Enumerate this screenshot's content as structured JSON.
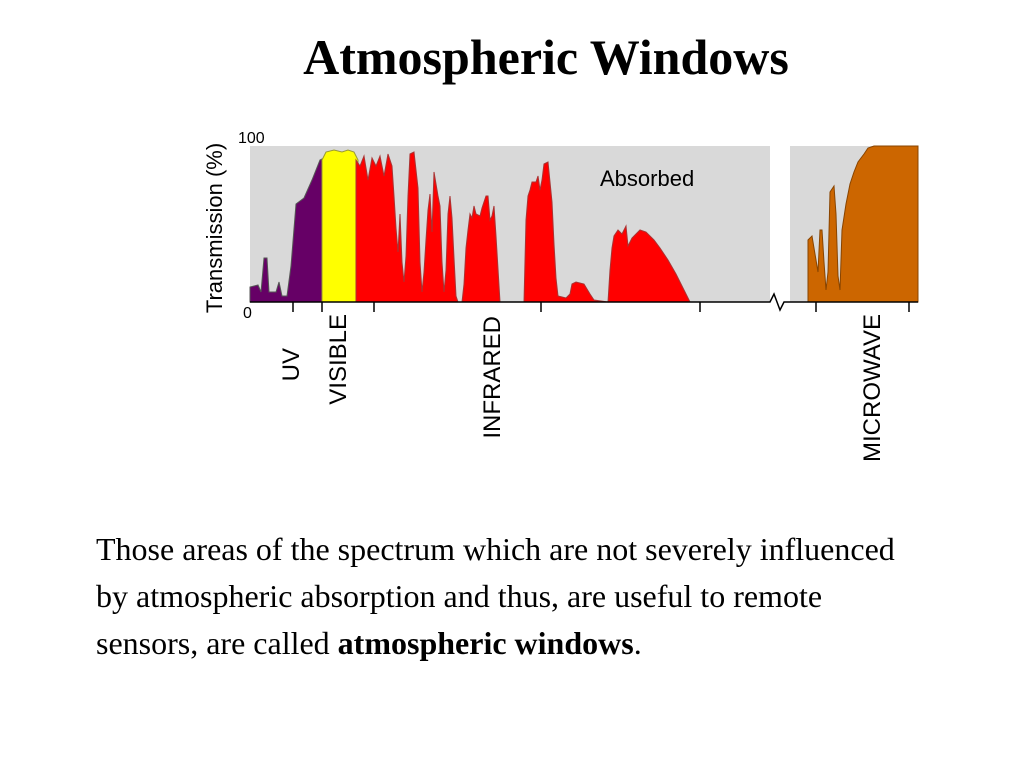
{
  "slide": {
    "title": "Atmospheric Windows",
    "caption_before": "Those areas of the spectrum which are not severely influenced by atmospheric absorption and thus, are useful to remote sensors, are called ",
    "caption_bold": "atmospheric windows",
    "caption_after": "."
  },
  "chart_data": {
    "type": "area",
    "title": "",
    "xlabel": "",
    "ylabel": "Transmission (%)",
    "ylim": [
      0,
      100
    ],
    "y_ticks": [
      "0",
      "100"
    ],
    "annotation": "Absorbed",
    "bands": [
      {
        "name": "UV",
        "color": "#660066"
      },
      {
        "name": "VISIBLE",
        "color": "#ffff00"
      },
      {
        "name": "INFRARED",
        "color": "#ff0000"
      },
      {
        "name": "MICROWAVE",
        "color": "#cc6600"
      }
    ],
    "absorbed_color": "#d9d9d9",
    "x_axis_break": true,
    "grid": false,
    "legend": "none"
  }
}
